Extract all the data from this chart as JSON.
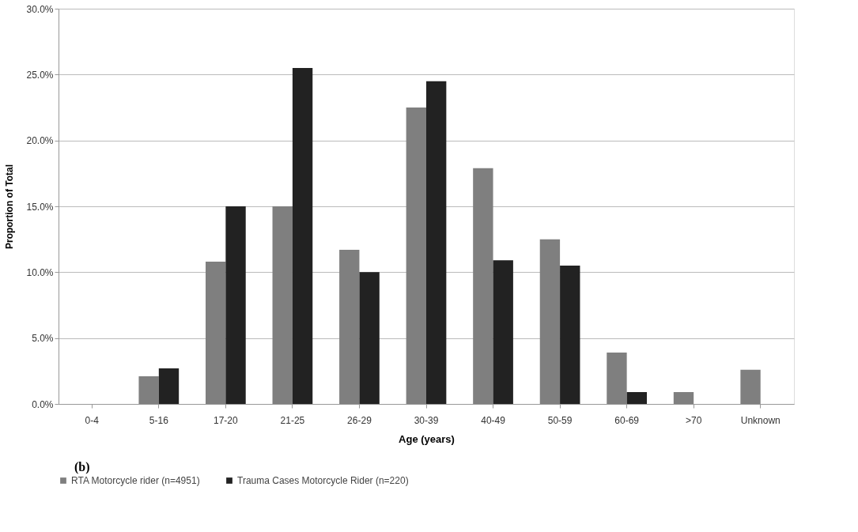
{
  "chart_data": {
    "type": "bar",
    "categories": [
      "0-4",
      "5-16",
      "17-20",
      "21-25",
      "26-29",
      "30-39",
      "40-49",
      "50-59",
      "60-69",
      ">70",
      "Unknown"
    ],
    "series": [
      {
        "name": "RTA Motorcycle rider (n=4951)",
        "color": "#7f7f7f",
        "values": [
          0,
          2.1,
          10.8,
          15.0,
          11.7,
          22.5,
          17.9,
          12.5,
          3.9,
          0.9,
          2.6
        ]
      },
      {
        "name": "Trauma Cases Motorcycle Rider (n=220)",
        "color": "#222222",
        "values": [
          0,
          2.7,
          15.0,
          25.5,
          10.0,
          24.5,
          10.9,
          10.5,
          0.9,
          0,
          0
        ]
      }
    ],
    "xlabel": "Age (years)",
    "ylabel": "Proportion of Total",
    "ylim": [
      0,
      30
    ],
    "yticks": [
      {
        "value": 0,
        "label": "0.0%"
      },
      {
        "value": 5,
        "label": "5.0%"
      },
      {
        "value": 10,
        "label": "10.0%"
      },
      {
        "value": 15,
        "label": "15.0%"
      },
      {
        "value": 20,
        "label": "20.0%"
      },
      {
        "value": 25,
        "label": "25.0%"
      },
      {
        "value": 30,
        "label": "30.0%"
      }
    ],
    "grid": "y",
    "legend": "bottom",
    "annotations": [
      "(b)"
    ]
  }
}
